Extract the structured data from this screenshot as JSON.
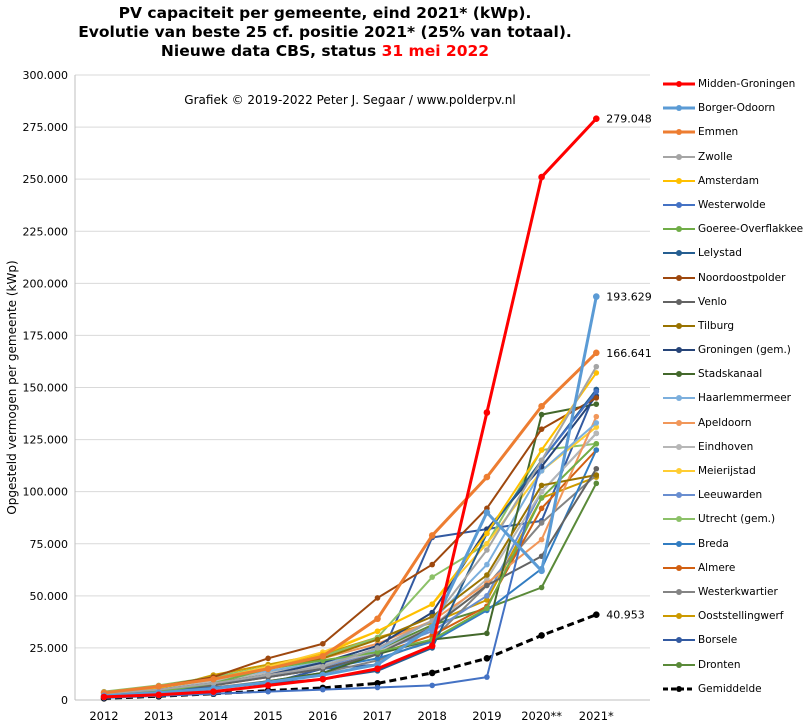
{
  "title": {
    "line1": "PV capaciteit per gemeente, eind 2021* (kWp).",
    "line2": "Evolutie van beste 25 cf. positie 2021* (25% van totaal).",
    "line3_prefix": "Nieuwe data CBS, status ",
    "line3_date": "31 mei 2022"
  },
  "credit": "Grafiek © 2019-2022 Peter J. Segaar / www.polderpv.nl",
  "chart_data": {
    "type": "line",
    "ylabel": "Opgesteld vermogen per gemeente (kWp)",
    "xlabel": "",
    "ylim": [
      0,
      300000
    ],
    "yticks": [
      0,
      25000,
      50000,
      75000,
      100000,
      125000,
      150000,
      175000,
      200000,
      225000,
      250000,
      275000,
      300000
    ],
    "ytick_labels": [
      "0",
      "25.000",
      "50.000",
      "75.000",
      "100.000",
      "125.000",
      "150.000",
      "175.000",
      "200.000",
      "225.000",
      "250.000",
      "275.000",
      "300.000"
    ],
    "categories": [
      "2012",
      "2013",
      "2014",
      "2015",
      "2016",
      "2017",
      "2018",
      "2019",
      "2020**",
      "2021*"
    ],
    "grid": "horizontal",
    "legend_position": "right",
    "series": [
      {
        "name": "Midden-Groningen",
        "color": "#ff0000",
        "width": 3,
        "values": [
          1500,
          2500,
          4000,
          7000,
          10000,
          15000,
          26000,
          138000,
          251000,
          279048
        ]
      },
      {
        "name": "Borger-Odoorn",
        "color": "#5b9bd5",
        "width": 3,
        "values": [
          2000,
          3500,
          5500,
          8500,
          12000,
          17000,
          35000,
          90000,
          62000,
          193629
        ]
      },
      {
        "name": "Emmen",
        "color": "#ed7d31",
        "width": 3,
        "values": [
          3500,
          6500,
          10000,
          15000,
          21000,
          39000,
          79000,
          107000,
          141000,
          166641
        ]
      },
      {
        "name": "Zwolle",
        "color": "#a5a5a5",
        "width": 2,
        "values": [
          3000,
          5000,
          8000,
          12000,
          16000,
          25000,
          38000,
          72000,
          115000,
          160000
        ]
      },
      {
        "name": "Amsterdam",
        "color": "#ffc000",
        "width": 2,
        "values": [
          3000,
          6000,
          10000,
          15000,
          22000,
          33000,
          46000,
          80000,
          120000,
          157000
        ]
      },
      {
        "name": "Westerwolde",
        "color": "#4472c4",
        "width": 2,
        "values": [
          1000,
          2000,
          3000,
          4000,
          5000,
          6000,
          7000,
          11000,
          115000,
          148000
        ]
      },
      {
        "name": "Goeree-Overflakkee",
        "color": "#70ad47",
        "width": 2,
        "values": [
          2000,
          4000,
          8000,
          15000,
          19000,
          23000,
          29000,
          44000,
          97000,
          123000
        ]
      },
      {
        "name": "Lelystad",
        "color": "#255e91",
        "width": 2,
        "values": [
          2000,
          4000,
          6000,
          8000,
          10000,
          14000,
          25000,
          80000,
          115000,
          149000
        ]
      },
      {
        "name": "Noordoostpolder",
        "color": "#9e480e",
        "width": 2,
        "values": [
          3500,
          6500,
          11000,
          20000,
          27000,
          49000,
          65000,
          92000,
          130000,
          145000
        ]
      },
      {
        "name": "Venlo",
        "color": "#636363",
        "width": 2,
        "values": [
          2500,
          4500,
          7000,
          11000,
          15000,
          22000,
          35000,
          55000,
          69000,
          111000
        ]
      },
      {
        "name": "Tilburg",
        "color": "#997300",
        "width": 2,
        "values": [
          3000,
          6000,
          10000,
          15000,
          20000,
          29000,
          40000,
          60000,
          103000,
          108000
        ]
      },
      {
        "name": "Groningen (gem.)",
        "color": "#264478",
        "width": 2,
        "values": [
          3000,
          5000,
          8000,
          12000,
          18000,
          26000,
          42000,
          82000,
          112000,
          146000
        ]
      },
      {
        "name": "Stadskanaal",
        "color": "#43682b",
        "width": 2,
        "values": [
          2000,
          3500,
          5500,
          9000,
          13000,
          22000,
          29000,
          32000,
          137000,
          142000
        ]
      },
      {
        "name": "Haarlemmermeer",
        "color": "#7cafdd",
        "width": 2,
        "values": [
          3500,
          6500,
          10000,
          14000,
          18000,
          24000,
          38000,
          65000,
          110000,
          133000
        ]
      },
      {
        "name": "Apeldoorn",
        "color": "#f1975a",
        "width": 2,
        "values": [
          3000,
          6000,
          10000,
          15000,
          20000,
          27000,
          38000,
          56000,
          77000,
          136000
        ]
      },
      {
        "name": "Eindhoven",
        "color": "#b7b7b7",
        "width": 2,
        "values": [
          3000,
          5500,
          9000,
          13000,
          17000,
          23000,
          35000,
          58000,
          100000,
          128000
        ]
      },
      {
        "name": "Meierijstad",
        "color": "#ffcd33",
        "width": 2,
        "values": [
          3000,
          6000,
          10000,
          16000,
          23000,
          33000,
          46000,
          75000,
          110000,
          131000
        ]
      },
      {
        "name": "Leeuwarden",
        "color": "#698ed0",
        "width": 2,
        "values": [
          2500,
          4500,
          7500,
          11000,
          16000,
          23000,
          33000,
          50000,
          100000,
          128000
        ]
      },
      {
        "name": "Utrecht (gem.)",
        "color": "#8cc168",
        "width": 2,
        "values": [
          4000,
          7000,
          11000,
          16000,
          21000,
          30000,
          59000,
          75000,
          120000,
          123000
        ]
      },
      {
        "name": "Breda",
        "color": "#327dc2",
        "width": 2,
        "values": [
          2500,
          4500,
          7500,
          11000,
          15000,
          20000,
          28000,
          43000,
          63000,
          120000
        ]
      },
      {
        "name": "Almere",
        "color": "#d26012",
        "width": 2,
        "values": [
          2500,
          4500,
          7000,
          11000,
          15000,
          22000,
          31000,
          45000,
          92000,
          120000
        ]
      },
      {
        "name": "Westerkwartier",
        "color": "#848484",
        "width": 2,
        "values": [
          2000,
          3500,
          6000,
          9000,
          13000,
          19000,
          29000,
          55000,
          85000,
          108000
        ]
      },
      {
        "name": "Ooststellingwerf",
        "color": "#cc9a00",
        "width": 2,
        "values": [
          2500,
          5000,
          12000,
          17000,
          22000,
          30000,
          37000,
          48000,
          97000,
          107000
        ]
      },
      {
        "name": "Borsele",
        "color": "#335aa1",
        "width": 2,
        "values": [
          2000,
          4000,
          6000,
          8000,
          15000,
          17000,
          78000,
          82000,
          86000,
          149000
        ]
      },
      {
        "name": "Dronten",
        "color": "#5a8a39",
        "width": 2,
        "values": [
          2500,
          5000,
          8000,
          13000,
          18000,
          24000,
          36000,
          44000,
          54000,
          104000
        ]
      },
      {
        "name": "Gemiddelde",
        "color": "#000000",
        "width": 3,
        "dashed": true,
        "values": [
          800,
          1800,
          3000,
          4500,
          5800,
          8000,
          13000,
          20000,
          31000,
          40953
        ]
      }
    ],
    "annotations": [
      {
        "series": "Midden-Groningen",
        "text": "279.048"
      },
      {
        "series": "Borger-Odoorn",
        "text": "193.629"
      },
      {
        "series": "Emmen",
        "text": "166.641"
      },
      {
        "series": "Gemiddelde",
        "text": "40.953"
      }
    ]
  }
}
